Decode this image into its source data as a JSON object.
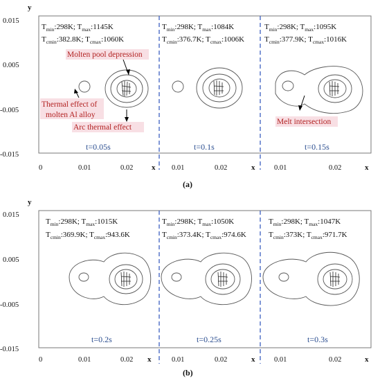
{
  "figure": {
    "panels": [
      {
        "label": "(a)",
        "y_axis_label": "y",
        "x_axis_label": "x",
        "y_ticks": [
          "0.015",
          "0.005",
          "-0.005",
          "-0.015"
        ],
        "subplots": [
          {
            "t": "t=0.05s",
            "tmin": "298K",
            "tmax": "1145K",
            "tcmin": "382.8K",
            "tcmax": "1060K",
            "x_ticks": [
              "0",
              "0.01",
              "0.02"
            ]
          },
          {
            "t": "t=0.1s",
            "tmin": "298K",
            "tmax": "1084K",
            "tcmin": "376.7K",
            "tcmax": "1006K",
            "x_ticks": [
              "0.01",
              "0.02"
            ]
          },
          {
            "t": "t=0.15s",
            "tmin": "298K",
            "tmax": "1095K",
            "tcmin": "377.9K",
            "tcmax": "1016K",
            "x_ticks": [
              "0.01",
              "0.02"
            ]
          }
        ],
        "annotations": {
          "molten_pool": "Molten pool depression",
          "thermal_effect_line1": "Thermal effect of",
          "thermal_effect_line2": "molten Al alloy",
          "arc_effect": "Arc thermal effect",
          "melt_intersection": "Melt intersection"
        }
      },
      {
        "label": "(b)",
        "y_axis_label": "y",
        "x_axis_label": "x",
        "y_ticks": [
          "0.015",
          "0.005",
          "-0.005",
          "-0.015"
        ],
        "subplots": [
          {
            "t": "t=0.2s",
            "tmin": "298K",
            "tmax": "1015K",
            "tcmin": "369.9K",
            "tcmax": "943.6K",
            "x_ticks": [
              "0",
              "0.01",
              "0.02"
            ]
          },
          {
            "t": "t=0.25s",
            "tmin": "298K",
            "tmax": "1050K",
            "tcmin": "373.4K",
            "tcmax": "974.6K",
            "x_ticks": [
              "0.01",
              "0.02"
            ]
          },
          {
            "t": "t=0.3s",
            "tmin": "298K",
            "tmax": "1047K",
            "tcmin": "373K",
            "tcmax": "971.7K",
            "x_ticks": [
              "0.01",
              "0.02"
            ]
          }
        ]
      }
    ],
    "colors": {
      "time_label": "#2a4d8f",
      "annotation": "#b22222",
      "highlight": "#f8dfe4",
      "divider": "#3b5fc0"
    }
  }
}
